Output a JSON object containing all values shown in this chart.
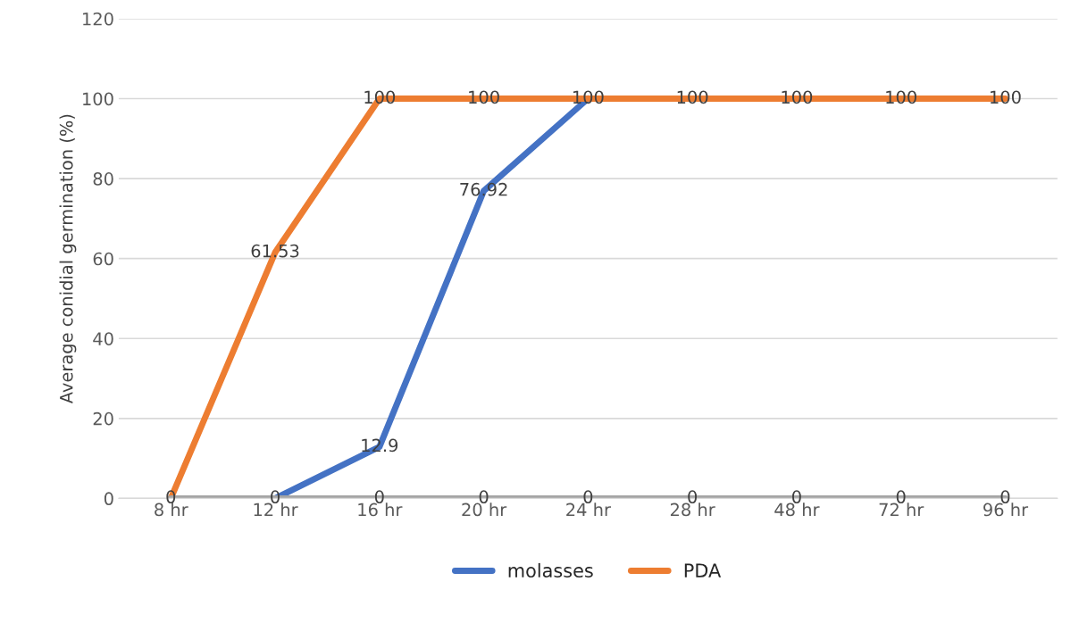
{
  "chart_data": {
    "type": "line",
    "ylabel": "Average conidial germination (%)",
    "categories": [
      "8 hr",
      "12 hr",
      "16 hr",
      "20 hr",
      "24 hr",
      "28 hr",
      "48 hr",
      "72 hr",
      "96 hr"
    ],
    "series": [
      {
        "name": "molasses",
        "color": "#4472c4",
        "values": [
          null,
          0,
          12.9,
          76.92,
          100,
          null,
          null,
          null,
          null
        ],
        "value_labels": [
          null,
          null,
          "12.9",
          "76.92",
          null,
          null,
          null,
          null,
          null
        ]
      },
      {
        "name": "PDA",
        "color": "#ed7d31",
        "values": [
          0,
          61.53,
          100,
          100,
          100,
          100,
          100,
          100,
          100
        ],
        "value_labels": [
          null,
          "61.53",
          "100",
          "100",
          "100",
          "100",
          "100",
          "100",
          "100"
        ]
      },
      {
        "color": "#a5a5a5",
        "values": [
          0,
          0,
          0,
          0,
          0,
          0,
          0,
          0,
          0
        ],
        "value_labels": [
          "0",
          "0",
          "0",
          "0",
          "0",
          "0",
          "0",
          "0",
          "0"
        ]
      }
    ],
    "ylim": [
      0,
      120
    ],
    "yticks": [
      0,
      20,
      40,
      60,
      80,
      100,
      120
    ],
    "grid": "y",
    "legend": "bottom",
    "marker": "none",
    "line_style": "solid"
  }
}
